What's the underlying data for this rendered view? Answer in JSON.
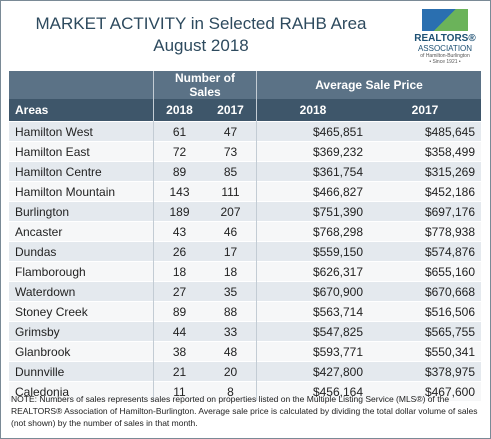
{
  "header": {
    "title": "MARKET ACTIVITY in Selected RAHB Area",
    "subtitle": "August 2018",
    "logo": {
      "brand": "REALTORS®",
      "line1": "ASSOCIATION",
      "line2": "of Hamilton-Burlington",
      "line3": "• Since 1921 •"
    }
  },
  "table": {
    "groups": [
      "Number of Sales",
      "Average Sale Price"
    ],
    "columns": [
      "Areas",
      "2018",
      "2017",
      "2018",
      "2017"
    ],
    "rows": [
      [
        "Hamilton West",
        61,
        47,
        "$465,851",
        "$485,645"
      ],
      [
        "Hamilton East",
        72,
        73,
        "$369,232",
        "$358,499"
      ],
      [
        "Hamilton Centre",
        89,
        85,
        "$361,754",
        "$315,269"
      ],
      [
        "Hamilton Mountain",
        143,
        111,
        "$466,827",
        "$452,186"
      ],
      [
        "Burlington",
        189,
        207,
        "$751,390",
        "$697,176"
      ],
      [
        "Ancaster",
        43,
        46,
        "$768,298",
        "$778,938"
      ],
      [
        "Dundas",
        26,
        17,
        "$559,150",
        "$574,876"
      ],
      [
        "Flamborough",
        18,
        18,
        "$626,317",
        "$655,160"
      ],
      [
        "Waterdown",
        27,
        35,
        "$670,900",
        "$670,668"
      ],
      [
        "Stoney Creek",
        89,
        88,
        "$563,714",
        "$516,506"
      ],
      [
        "Grimsby",
        44,
        33,
        "$547,825",
        "$565,755"
      ],
      [
        "Glanbrook",
        38,
        48,
        "$593,771",
        "$550,341"
      ],
      [
        "Dunnville",
        21,
        20,
        "$427,800",
        "$378,975"
      ],
      [
        "Caledonia",
        11,
        8,
        "$456,164",
        "$467,600"
      ]
    ]
  },
  "note": "NOTE: Numbers of sales represents sales reported on properties listed on the Multiple Listing Service (MLS®) of the REALTORS® Association of Hamilton-Burlington. Average sale price is calculated by dividing the total dollar volume of sales (not shown) by the number of sales in that month."
}
